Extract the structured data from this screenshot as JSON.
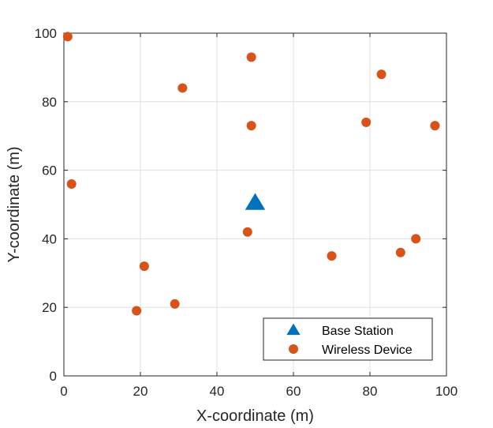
{
  "chart_data": {
    "type": "scatter",
    "title": "",
    "xlabel": "X-coordinate (m)",
    "ylabel": "Y-coordinate (m)",
    "xlim": [
      0,
      100
    ],
    "ylim": [
      0,
      100
    ],
    "xticks": [
      0,
      20,
      40,
      60,
      80,
      100
    ],
    "yticks": [
      0,
      20,
      40,
      60,
      80,
      100
    ],
    "grid": true,
    "legend_position": "bottom-right",
    "series": [
      {
        "name": "Base Station",
        "marker": "triangle",
        "color": "#0072BD",
        "points": [
          [
            50,
            50.5
          ]
        ]
      },
      {
        "name": "Wireless Device",
        "marker": "circle",
        "color": "#D95319",
        "points": [
          [
            1,
            99
          ],
          [
            31,
            84
          ],
          [
            49,
            93
          ],
          [
            83,
            88
          ],
          [
            49,
            73
          ],
          [
            79,
            74
          ],
          [
            97,
            73
          ],
          [
            2,
            56
          ],
          [
            48,
            42
          ],
          [
            92,
            40
          ],
          [
            88,
            36
          ],
          [
            70,
            35
          ],
          [
            21,
            32
          ],
          [
            29,
            21
          ],
          [
            19,
            19
          ]
        ]
      }
    ]
  }
}
